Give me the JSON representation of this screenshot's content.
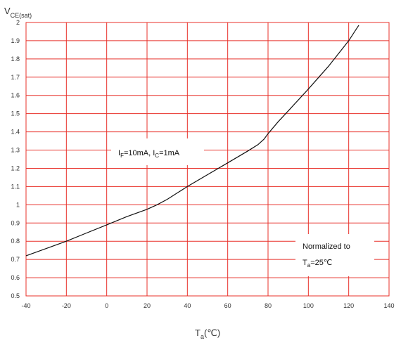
{
  "chart_data": {
    "type": "line",
    "xlabel": {
      "main": "T",
      "sub": "a",
      "suffix": "(℃)"
    },
    "ylabel": {
      "main": "V",
      "sub": "CE(sat)"
    },
    "xlim": [
      -40,
      140
    ],
    "ylim": [
      0.5,
      2.0
    ],
    "xticks": [
      -40,
      -20,
      0,
      20,
      40,
      60,
      80,
      100,
      120,
      140
    ],
    "yticks": [
      0.5,
      0.6,
      0.7,
      0.8,
      0.9,
      1,
      1.1,
      1.2,
      1.3,
      1.4,
      1.5,
      1.6,
      1.7,
      1.8,
      1.9,
      2
    ],
    "grid": true,
    "grid_color": "#e8312a",
    "line_color": "#111111",
    "series": [
      {
        "x": [
          -40,
          -30,
          -20,
          -10,
          0,
          10,
          20,
          25,
          30,
          40,
          50,
          60,
          70,
          75,
          78,
          80,
          85,
          90,
          100,
          110,
          120,
          125
        ],
        "y": [
          0.72,
          0.76,
          0.8,
          0.845,
          0.89,
          0.935,
          0.975,
          1.0,
          1.03,
          1.1,
          1.165,
          1.23,
          1.295,
          1.33,
          1.36,
          1.39,
          1.455,
          1.515,
          1.635,
          1.76,
          1.9,
          1.985
        ]
      }
    ],
    "annotations": [
      {
        "id": "conditions",
        "parts": [
          [
            "I",
            "F",
            "=10mA,  "
          ],
          [
            "I",
            "C",
            "=1mA"
          ]
        ]
      },
      {
        "id": "normalized",
        "line1": "Normalized to",
        "line2": [
          "T",
          "a",
          "=25℃"
        ]
      }
    ]
  }
}
